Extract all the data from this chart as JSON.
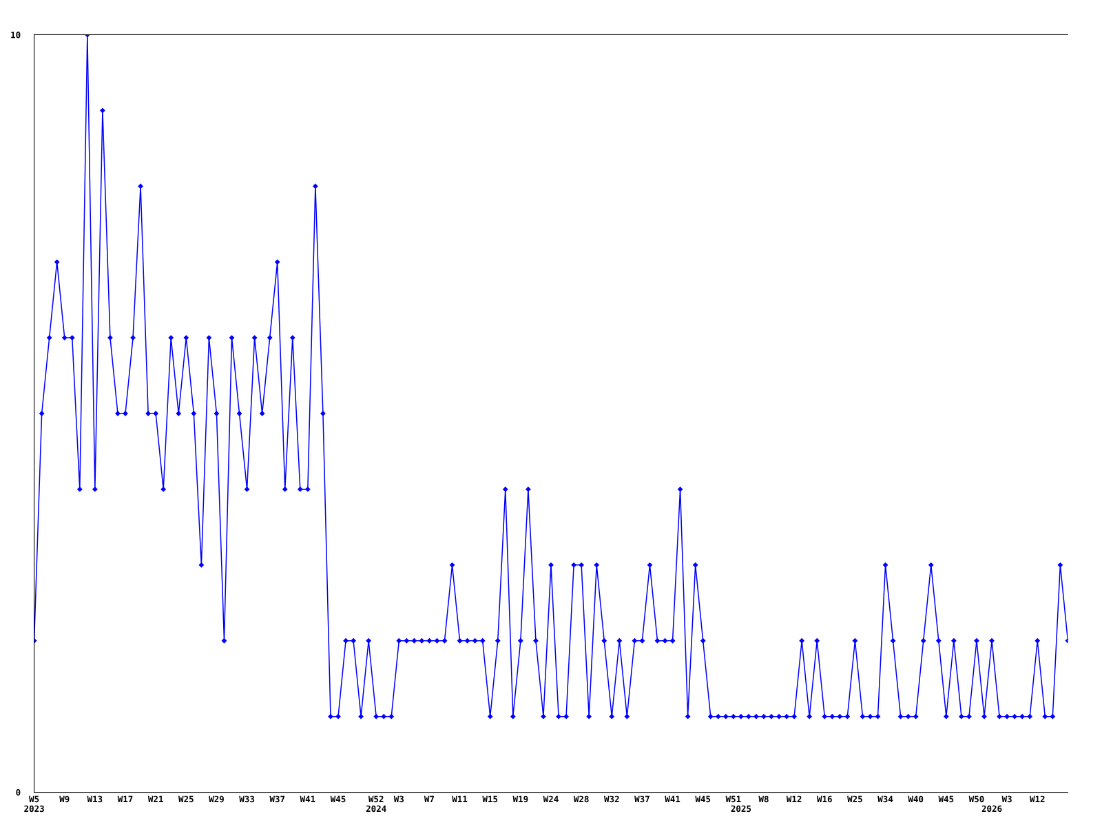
{
  "chart_data": {
    "type": "line",
    "color": "#0000ff",
    "marker": "diamond",
    "line_style": "solid",
    "grid": false,
    "ylim": [
      0,
      10
    ],
    "yticks": [
      0,
      10
    ],
    "categories": [
      "W5\n2023",
      null,
      null,
      null,
      "W9",
      null,
      null,
      null,
      "W13",
      null,
      null,
      null,
      "W17",
      null,
      null,
      null,
      "W21",
      null,
      null,
      null,
      "W25",
      null,
      null,
      null,
      "W29",
      null,
      null,
      null,
      "W33",
      null,
      null,
      null,
      "W37",
      null,
      null,
      null,
      "W41",
      null,
      null,
      null,
      "W45",
      null,
      null,
      null,
      null,
      "W52\n2024",
      null,
      null,
      "W3",
      null,
      null,
      null,
      "W7",
      null,
      null,
      null,
      "W11",
      null,
      null,
      null,
      "W15",
      null,
      null,
      null,
      "W19",
      null,
      null,
      null,
      "W24",
      null,
      null,
      null,
      "W28",
      null,
      null,
      null,
      "W32",
      null,
      null,
      null,
      "W37",
      null,
      null,
      null,
      "W41",
      null,
      null,
      null,
      "W45",
      null,
      null,
      null,
      "W51",
      "\n2025",
      null,
      null,
      "W8",
      null,
      null,
      null,
      "W12",
      null,
      null,
      null,
      "W16",
      null,
      null,
      null,
      "W25",
      null,
      null,
      null,
      "W34",
      null,
      null,
      null,
      "W40",
      null,
      null,
      null,
      "W45",
      null,
      null,
      null,
      "W50",
      null,
      "\n2026",
      null,
      "W3",
      null,
      null,
      null,
      "W12",
      null,
      null,
      null,
      null
    ],
    "values": [
      2,
      5,
      6,
      7,
      6,
      6,
      4,
      10,
      4,
      9,
      6,
      5,
      5,
      6,
      8,
      5,
      5,
      4,
      6,
      5,
      6,
      5,
      3,
      6,
      5,
      2,
      6,
      5,
      4,
      6,
      5,
      6,
      7,
      4,
      6,
      4,
      4,
      8,
      5,
      1,
      1,
      2,
      2,
      1,
      2,
      1,
      1,
      1,
      2,
      2,
      2,
      2,
      2,
      2,
      2,
      3,
      2,
      2,
      2,
      2,
      1,
      2,
      4,
      1,
      2,
      4,
      2,
      1,
      3,
      1,
      1,
      3,
      3,
      1,
      3,
      2,
      1,
      2,
      1,
      2,
      2,
      3,
      2,
      2,
      2,
      4,
      1,
      3,
      2,
      1,
      1,
      1,
      1,
      1,
      1,
      1,
      1,
      1,
      1,
      1,
      1,
      2,
      1,
      2,
      1,
      1,
      1,
      1,
      2,
      1,
      1,
      1,
      3,
      2,
      1,
      1,
      1,
      2,
      3,
      2,
      1,
      2,
      1,
      1,
      2,
      1,
      2,
      1,
      1,
      1,
      1,
      1,
      2,
      1,
      1,
      3,
      2
    ]
  }
}
